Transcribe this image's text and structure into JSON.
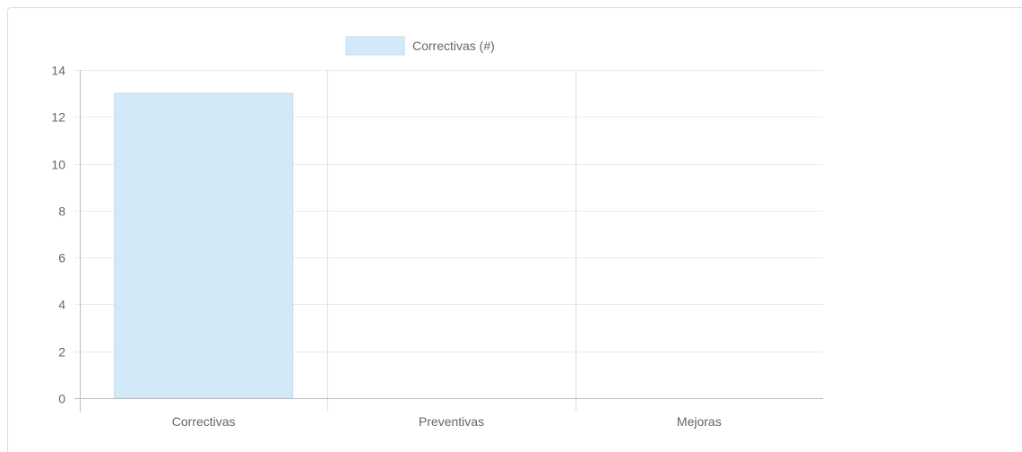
{
  "chart_data": {
    "type": "bar",
    "categories": [
      "Correctivas",
      "Preventivas",
      "Mejoras"
    ],
    "series": [
      {
        "name": "Correctivas (#)",
        "values": [
          13,
          0,
          0
        ],
        "color": "#d4e9f8",
        "border_color": "#bcdcf4"
      }
    ],
    "ylim": [
      0,
      14
    ],
    "y_ticks": [
      0,
      2,
      4,
      6,
      8,
      10,
      12,
      14
    ],
    "grid": true,
    "legend_position": "top"
  }
}
